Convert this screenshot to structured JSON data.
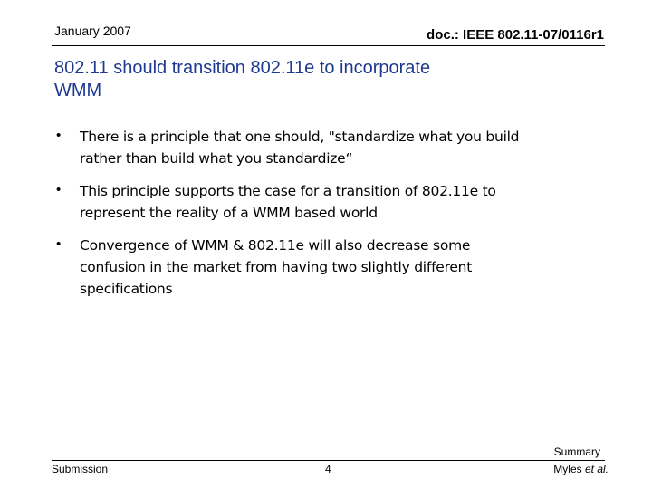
{
  "header": {
    "date": "January 2007",
    "doc_id": "doc.: IEEE 802.11-07/0116r1"
  },
  "title": {
    "lines": [
      "802.11 should transition 802.11e to incorporate",
      "WMM"
    ]
  },
  "bullets": [
    {
      "lines": [
        "There is a principle that one should, \"standardize what you build",
        "rather than build what you standardize“"
      ]
    },
    {
      "lines": [
        "This principle supports the case for a transition of 802.11e to",
        "represent the reality of a WMM based world"
      ]
    },
    {
      "lines": [
        "Convergence of WMM & 802.11e will also decrease some",
        "confusion in the market from having two slightly different",
        "specifications"
      ]
    }
  ],
  "footer": {
    "left": "Submission",
    "page": "4",
    "section": "Summary",
    "author": "Myles",
    "author_suffix": "et al."
  }
}
